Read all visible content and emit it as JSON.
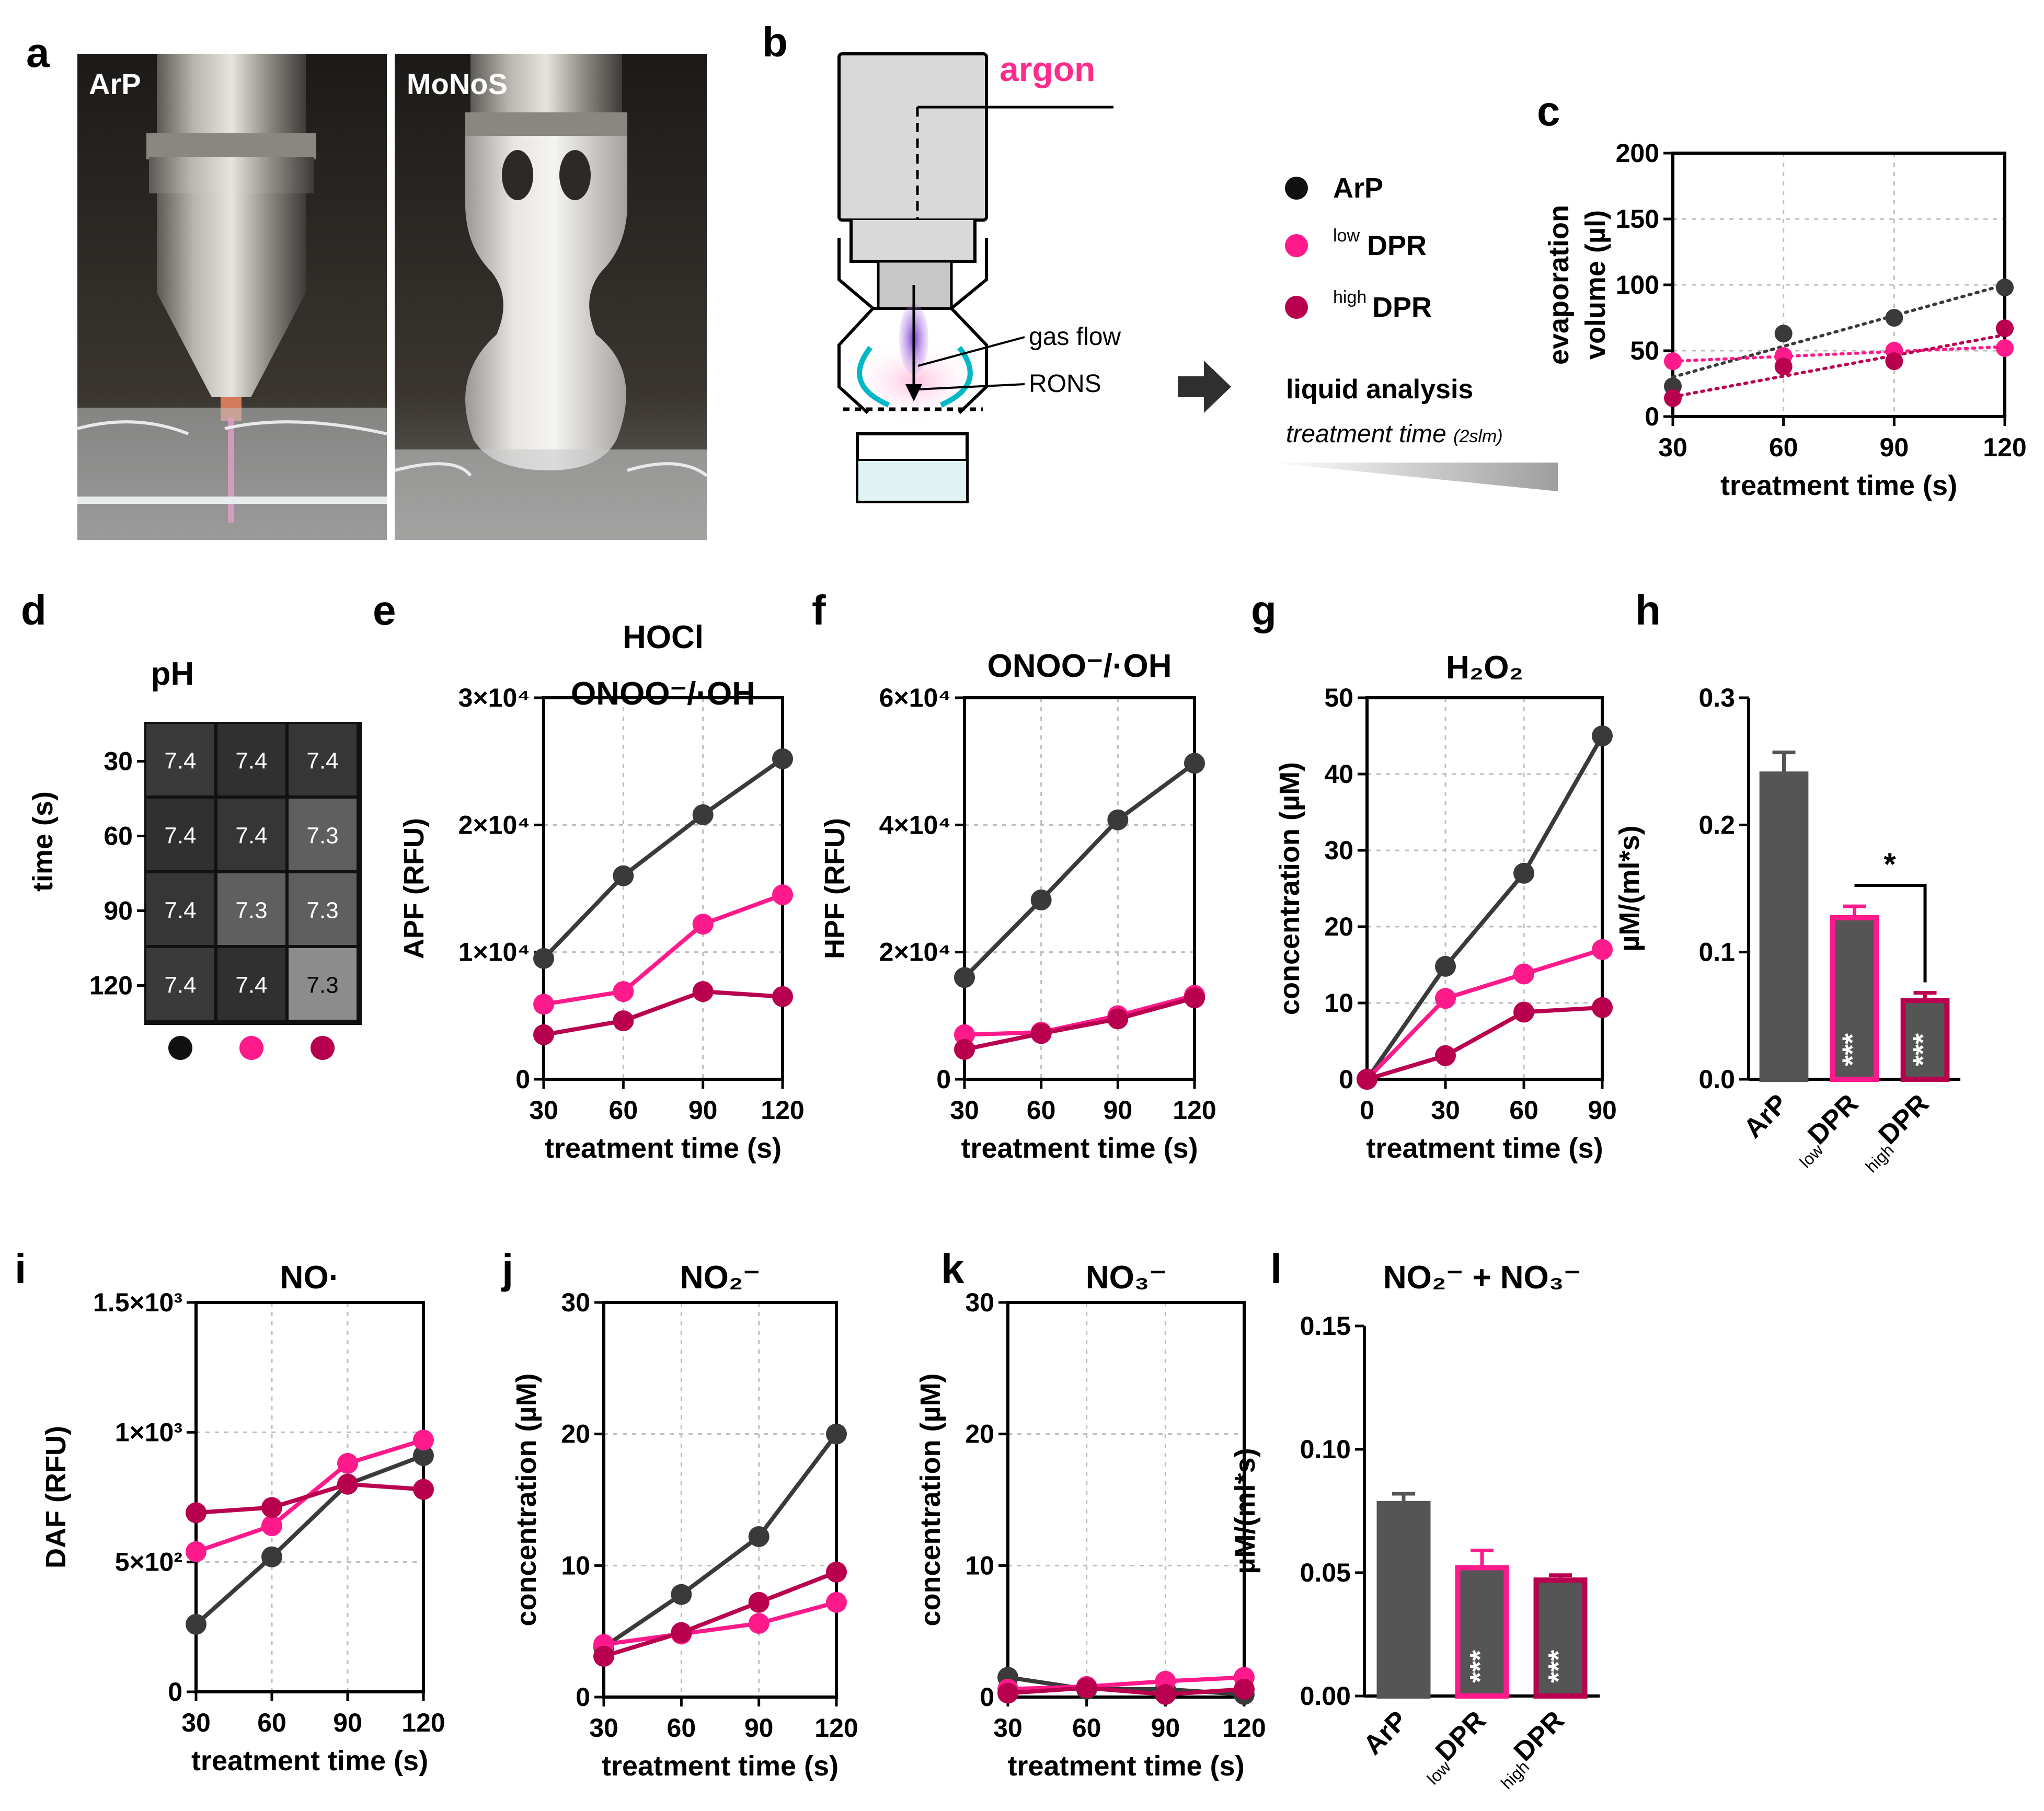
{
  "colors": {
    "arp": "#3a3a3a",
    "low": "#ff1a8c",
    "high": "#b8004f",
    "bar": "#555555"
  },
  "panels": {
    "a": "a",
    "b": "b",
    "c": "c",
    "d": "d",
    "e": "e",
    "f": "f",
    "g": "g",
    "h": "h",
    "i": "i",
    "j": "j",
    "k": "k",
    "l": "l"
  },
  "photos": {
    "left": "ArP",
    "right": "MoNoS"
  },
  "schematic": {
    "argon": "argon",
    "gas_flow": "gas flow",
    "rons": "RONS",
    "liquid": "liquid  analysis",
    "treatment": "treatment time",
    "treatment_sub": "(2slm)"
  },
  "legend": {
    "arp": "ArP",
    "low_sup": "low",
    "low": "DPR",
    "high_sup": "high",
    "high": "DPR"
  },
  "heatmap": {
    "title": "pH",
    "ylabel": "time (s)",
    "rows": [
      "30",
      "60",
      "90",
      "120"
    ],
    "values": [
      [
        "7.4",
        "7.4",
        "7.4"
      ],
      [
        "7.4",
        "7.4",
        "7.3"
      ],
      [
        "7.4",
        "7.3",
        "7.3"
      ],
      [
        "7.4",
        "7.4",
        "7.3"
      ]
    ]
  },
  "chart_data": [
    {
      "id": "c",
      "type": "scatter",
      "title": "",
      "xlabel": "treatment time (s)",
      "ylabel_lines": [
        "evaporation",
        "volume (µl)"
      ],
      "x": [
        30,
        60,
        90,
        120
      ],
      "xlim": [
        30,
        120
      ],
      "ylim": [
        0,
        200
      ],
      "yticks": [
        0,
        50,
        100,
        150,
        200
      ],
      "ytick_labels": [
        "0",
        "50",
        "100",
        "150",
        "200"
      ],
      "series": [
        {
          "name": "ArP",
          "values": [
            23,
            63,
            75,
            98
          ],
          "trend": [
            30,
            100
          ]
        },
        {
          "name": "lowDPR",
          "values": [
            42,
            46,
            50,
            52
          ],
          "trend": [
            42,
            53
          ]
        },
        {
          "name": "highDPR",
          "values": [
            14,
            38,
            42,
            67
          ],
          "trend": [
            15,
            62
          ]
        }
      ]
    },
    {
      "id": "e",
      "type": "line",
      "title_lines": [
        "HOCl",
        "ONOO⁻/·OH"
      ],
      "xlabel": "treatment time (s)",
      "ylabel": "APF (RFU)",
      "x": [
        30,
        60,
        90,
        120
      ],
      "xlim": [
        30,
        120
      ],
      "ylim": [
        0,
        30000
      ],
      "yticks": [
        0,
        10000,
        20000,
        30000
      ],
      "ytick_labels": [
        "0",
        "1×10⁴",
        "2×10⁴",
        "3×10⁴"
      ],
      "series": [
        {
          "name": "ArP",
          "values": [
            9500,
            16000,
            20800,
            25200
          ]
        },
        {
          "name": "lowDPR",
          "values": [
            5900,
            6900,
            12200,
            14500
          ]
        },
        {
          "name": "highDPR",
          "values": [
            3500,
            4600,
            6900,
            6500
          ]
        }
      ]
    },
    {
      "id": "f",
      "type": "line",
      "title_lines": [
        "ONOO⁻/·OH"
      ],
      "xlabel": "treatment time (s)",
      "ylabel": "HPF (RFU)",
      "x": [
        30,
        60,
        90,
        120
      ],
      "xlim": [
        30,
        120
      ],
      "ylim": [
        0,
        60000
      ],
      "yticks": [
        0,
        20000,
        40000,
        60000
      ],
      "ytick_labels": [
        "0",
        "2×10⁴",
        "4×10⁴",
        "6×10⁴"
      ],
      "series": [
        {
          "name": "ArP",
          "values": [
            16000,
            28200,
            40800,
            49700
          ]
        },
        {
          "name": "lowDPR",
          "values": [
            7000,
            7400,
            10000,
            13200
          ]
        },
        {
          "name": "highDPR",
          "values": [
            4700,
            7200,
            9500,
            12800
          ]
        }
      ]
    },
    {
      "id": "g",
      "type": "line",
      "title_lines": [
        "H₂O₂"
      ],
      "xlabel": "treatment time (s)",
      "ylabel": "concentration (µM)",
      "x": [
        0,
        30,
        60,
        90
      ],
      "xlim": [
        0,
        90
      ],
      "ylim": [
        0,
        50
      ],
      "yticks": [
        0,
        10,
        20,
        30,
        40,
        50
      ],
      "ytick_labels": [
        "0",
        "10",
        "20",
        "30",
        "40",
        "50"
      ],
      "series": [
        {
          "name": "ArP",
          "values": [
            0,
            14.8,
            27,
            45
          ]
        },
        {
          "name": "lowDPR",
          "values": [
            0,
            10.6,
            13.8,
            17
          ]
        },
        {
          "name": "highDPR",
          "values": [
            0,
            3.1,
            8.8,
            9.4
          ]
        }
      ]
    },
    {
      "id": "h",
      "type": "bar",
      "ylabel": "µM/(ml*s)",
      "ylim": [
        0,
        0.3
      ],
      "yticks": [
        0,
        0.1,
        0.2,
        0.3
      ],
      "ytick_labels": [
        "0.0",
        "0.1",
        "0.2",
        "0.3"
      ],
      "categories": [
        "ArP",
        "lowDPR",
        "highDPR"
      ],
      "cat_main": [
        "ArP",
        "DPR",
        "DPR"
      ],
      "cat_sup": [
        "",
        "low",
        "high"
      ],
      "values": [
        0.24,
        0.127,
        0.062
      ],
      "errors": [
        0.017,
        0.009,
        0.006
      ],
      "sig": [
        "",
        "***",
        "***"
      ],
      "bracket": "*"
    },
    {
      "id": "i",
      "type": "line",
      "title_lines": [
        "NO·"
      ],
      "xlabel": "treatment time (s)",
      "ylabel": "DAF (RFU)",
      "x": [
        30,
        60,
        90,
        120
      ],
      "xlim": [
        30,
        120
      ],
      "ylim": [
        0,
        1500
      ],
      "yticks": [
        0,
        500,
        1000,
        1500
      ],
      "ytick_labels": [
        "0",
        "5×10²",
        "1×10³",
        "1.5×10³"
      ],
      "series": [
        {
          "name": "ArP",
          "values": [
            260,
            520,
            800,
            910
          ]
        },
        {
          "name": "lowDPR",
          "values": [
            540,
            640,
            880,
            970
          ]
        },
        {
          "name": "highDPR",
          "values": [
            690,
            710,
            800,
            780
          ]
        }
      ]
    },
    {
      "id": "j",
      "type": "line",
      "title_lines": [
        "NO₂⁻"
      ],
      "xlabel": "treatment time (s)",
      "ylabel": "concentration (µM)",
      "x": [
        30,
        60,
        90,
        120
      ],
      "xlim": [
        30,
        120
      ],
      "ylim": [
        0,
        30
      ],
      "yticks": [
        0,
        10,
        20,
        30
      ],
      "ytick_labels": [
        "0",
        "10",
        "20",
        "30"
      ],
      "series": [
        {
          "name": "ArP",
          "values": [
            3.8,
            7.8,
            12.2,
            20
          ]
        },
        {
          "name": "lowDPR",
          "values": [
            4,
            4.8,
            5.6,
            7.2
          ]
        },
        {
          "name": "highDPR",
          "values": [
            3.1,
            4.9,
            7.2,
            9.5
          ]
        }
      ]
    },
    {
      "id": "k",
      "type": "line",
      "title_lines": [
        "NO₃⁻"
      ],
      "xlabel": "treatment time (s)",
      "ylabel": "concentration (µM)",
      "x": [
        30,
        60,
        90,
        120
      ],
      "xlim": [
        30,
        120
      ],
      "ylim": [
        0,
        30
      ],
      "yticks": [
        0,
        10,
        20,
        30
      ],
      "ytick_labels": [
        "0",
        "10",
        "20",
        "30"
      ],
      "series": [
        {
          "name": "ArP",
          "values": [
            1.5,
            0.6,
            0.6,
            0.2
          ]
        },
        {
          "name": "lowDPR",
          "values": [
            0.6,
            0.8,
            1.2,
            1.5
          ]
        },
        {
          "name": "highDPR",
          "values": [
            0.3,
            0.7,
            0.2,
            0.6
          ]
        }
      ]
    },
    {
      "id": "l",
      "type": "bar",
      "title": "NO₂⁻ + NO₃⁻",
      "ylabel": "µM/(ml*s)",
      "ylim": [
        0,
        0.15
      ],
      "yticks": [
        0,
        0.05,
        0.1,
        0.15
      ],
      "ytick_labels": [
        "0.00",
        "0.05",
        "0.10",
        "0.15"
      ],
      "categories": [
        "ArP",
        "lowDPR",
        "highDPR"
      ],
      "cat_main": [
        "ArP",
        "DPR",
        "DPR"
      ],
      "cat_sup": [
        "",
        "low",
        "high"
      ],
      "values": [
        0.078,
        0.052,
        0.047
      ],
      "errors": [
        0.004,
        0.007,
        0.002
      ],
      "sig": [
        "",
        "***",
        "***"
      ]
    }
  ]
}
